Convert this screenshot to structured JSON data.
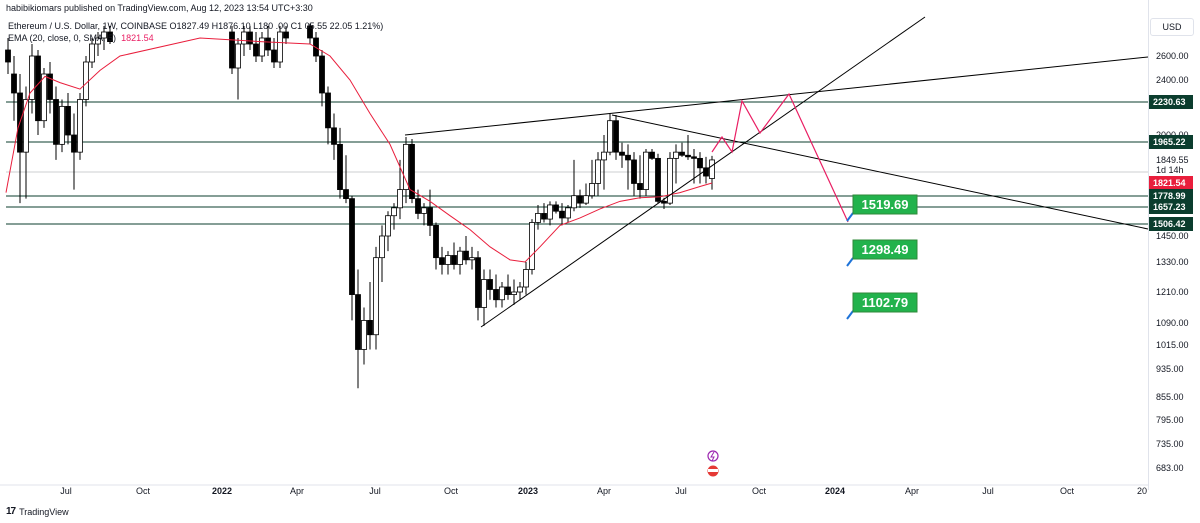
{
  "header": {
    "publisher": "habibikiomars published on TradingView.com, Aug 12, 2023 13:54 UTC+3:30"
  },
  "legend": {
    "symbol_line": "Ethereum / U.S. Dollar, 1W, COINBASE  O1827.49  H1876.10  L180 .00  C1 05.55  22.05  1.21%)",
    "ema_label": "EMA (20, close, 0, SMA, 5)",
    "ema_value": "1821.54"
  },
  "price_axis": {
    "currency": "USD",
    "ticks": [
      "2600.00",
      "2400.00",
      "2000.00",
      "1849.55",
      "1450.00",
      "1330.00",
      "1210.00",
      "1090.00",
      "1015.00",
      "935.00",
      "855.00",
      "795.00",
      "735.00",
      "683.00"
    ],
    "countdown": "1d 14h"
  },
  "price_labels": [
    {
      "value": "2230.63",
      "color": "#0b3d2e"
    },
    {
      "value": "1965.22",
      "color": "#0b3d2e"
    },
    {
      "value": "1821.54",
      "color": "#e91e3c"
    },
    {
      "value": "1778.99",
      "color": "#0b3d2e"
    },
    {
      "value": "1657.23",
      "color": "#0b3d2e"
    },
    {
      "value": "1506.42",
      "color": "#0b3d2e"
    }
  ],
  "time_axis": {
    "ticks": [
      "Jul",
      "Oct",
      "2022",
      "Apr",
      "Jul",
      "Oct",
      "2023",
      "Apr",
      "Jul",
      "Oct",
      "2024",
      "Apr",
      "Jul",
      "Oct",
      "20"
    ]
  },
  "targets": [
    "1519.69",
    "1298.49",
    "1102.79"
  ],
  "footer": {
    "brand": "TradingView"
  },
  "chart_data": {
    "type": "candlestick",
    "symbol": "Ethereum / U.S. Dollar",
    "interval": "1W",
    "exchange": "COINBASE",
    "ohlc_last": {
      "open": 1827.49,
      "high": 1876.1,
      "change": 22.05
    },
    "ema": {
      "name": "EMA (20, close, 0, SMA, 5)",
      "last": 1821.54,
      "color": "#e91e3c"
    },
    "horizontal_levels": [
      2230.63,
      1965.22,
      1778.99,
      1657.23,
      1506.42
    ],
    "projection_targets": [
      1519.69,
      1298.49,
      1102.79
    ],
    "colors": {
      "up": "#ffffff",
      "down": "#000000",
      "level": "#0b3d2e",
      "ema": "#e91e3c",
      "projection": "#e91e63",
      "target": "#22b24c"
    }
  }
}
